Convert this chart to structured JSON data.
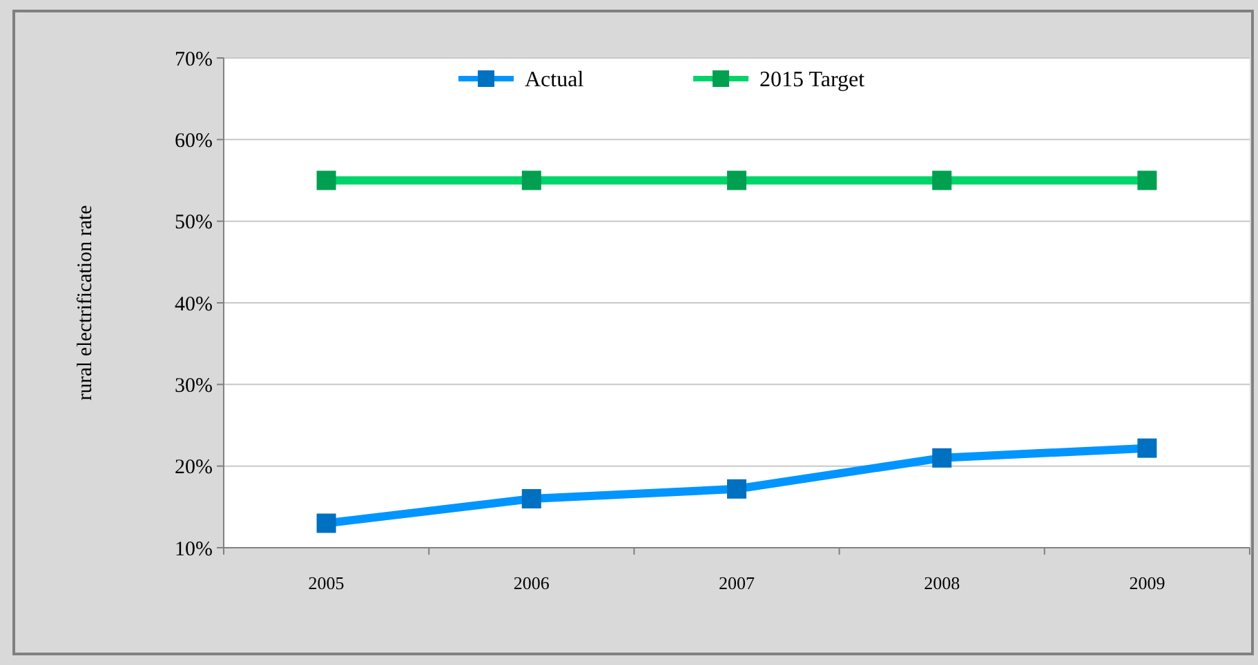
{
  "chart_data": {
    "type": "line",
    "ylabel": "rural electrification rate",
    "categories": [
      "2005",
      "2006",
      "2007",
      "2008",
      "2009"
    ],
    "series": [
      {
        "name": "Actual",
        "color": "#0070c0",
        "values": [
          13,
          16,
          17.2,
          21,
          22.2
        ]
      },
      {
        "name": "2015 Target",
        "color": "#00a050",
        "values": [
          55,
          55,
          55,
          55,
          55
        ]
      }
    ],
    "ylim": [
      10,
      70
    ],
    "yticks": [
      {
        "value": 10,
        "label": "10%"
      },
      {
        "value": 20,
        "label": "20%"
      },
      {
        "value": 30,
        "label": "30%"
      },
      {
        "value": 40,
        "label": "40%"
      },
      {
        "value": 50,
        "label": "50%"
      },
      {
        "value": 60,
        "label": "60%"
      },
      {
        "value": 70,
        "label": "70%"
      }
    ],
    "grid": "y",
    "legend": "top",
    "marker": "square",
    "line_style": "solid"
  }
}
